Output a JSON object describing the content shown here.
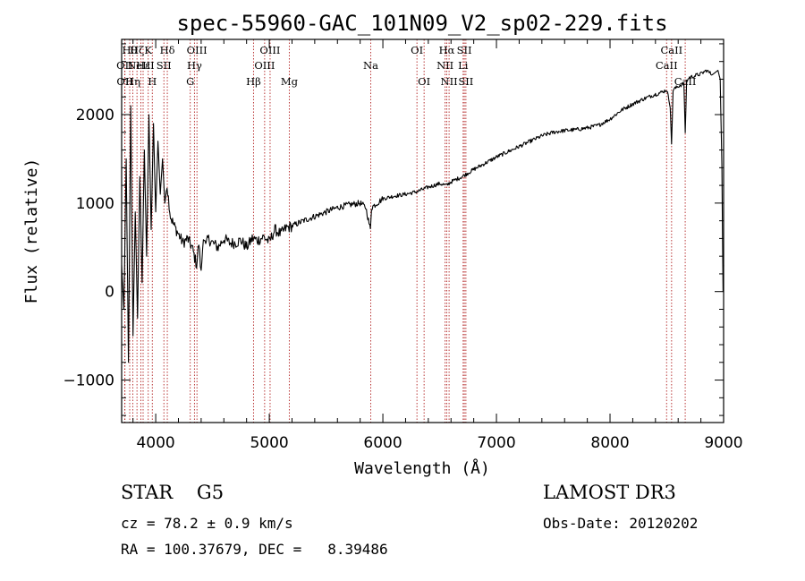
{
  "chart_data": {
    "type": "line",
    "title": "spec-55960-GAC_101N09_V2_sp02-229.fits",
    "xlabel": "Wavelength (Å)",
    "ylabel": "Flux (relative)",
    "xlim": [
      3700,
      9000
    ],
    "ylim": [
      -1480,
      2850
    ],
    "x_ticks": [
      4000,
      5000,
      6000,
      7000,
      8000,
      9000
    ],
    "y_ticks": [
      -1000,
      0,
      1000,
      2000
    ],
    "series": [
      {
        "name": "spectrum",
        "x": [
          3700,
          3720,
          3740,
          3760,
          3780,
          3800,
          3820,
          3840,
          3860,
          3880,
          3900,
          3920,
          3940,
          3960,
          3980,
          4000,
          4020,
          4040,
          4060,
          4080,
          4100,
          4130,
          4160,
          4200,
          4240,
          4280,
          4320,
          4360,
          4380,
          4400,
          4420,
          4440,
          4460,
          4500,
          4550,
          4600,
          4650,
          4700,
          4750,
          4800,
          4850,
          4900,
          4950,
          5000,
          5050,
          5100,
          5150,
          5200,
          5300,
          5400,
          5500,
          5600,
          5700,
          5800,
          5850,
          5890,
          5900,
          5950,
          6000,
          6100,
          6200,
          6300,
          6400,
          6500,
          6560,
          6600,
          6700,
          6800,
          6900,
          7000,
          7100,
          7200,
          7300,
          7400,
          7500,
          7600,
          7700,
          7800,
          7900,
          8000,
          8100,
          8200,
          8300,
          8400,
          8450,
          8500,
          8530,
          8542,
          8555,
          8600,
          8650,
          8662,
          8675,
          8700,
          8750,
          8800,
          8850,
          8900,
          8950,
          8970,
          8985,
          8995,
          9000
        ],
        "y": [
          300,
          -200,
          1500,
          -800,
          2100,
          -500,
          900,
          -300,
          1300,
          100,
          1600,
          400,
          2000,
          700,
          1900,
          900,
          1700,
          1100,
          1500,
          1000,
          1200,
          850,
          750,
          650,
          550,
          600,
          500,
          300,
          550,
          200,
          650,
          500,
          600,
          550,
          500,
          600,
          550,
          550,
          580,
          500,
          600,
          580,
          620,
          560,
          700,
          650,
          720,
          740,
          800,
          850,
          900,
          950,
          980,
          1000,
          950,
          700,
          950,
          1000,
          1050,
          1080,
          1100,
          1130,
          1180,
          1220,
          1200,
          1240,
          1300,
          1380,
          1450,
          1520,
          1580,
          1640,
          1700,
          1760,
          1800,
          1820,
          1830,
          1850,
          1880,
          1950,
          2050,
          2120,
          2180,
          2230,
          2250,
          2280,
          2100,
          1650,
          2280,
          2320,
          2350,
          1800,
          2380,
          2420,
          2440,
          2460,
          2500,
          2450,
          2500,
          2400,
          1400,
          0,
          300
        ]
      }
    ],
    "line_markers": [
      {
        "w": 3727,
        "label": "OII",
        "row": 2
      },
      {
        "w": 3729,
        "label": "OII",
        "row": 3
      },
      {
        "w": 3771,
        "label": "Hθ",
        "row": 1
      },
      {
        "w": 3798,
        "label": "Hη",
        "row": 3
      },
      {
        "w": 3835,
        "label": "Hζ",
        "row": 1
      },
      {
        "w": 3869,
        "label": "NeIII",
        "row": 2
      },
      {
        "w": 3889,
        "label": "Hε",
        "row": 2
      },
      {
        "w": 3934,
        "label": "K",
        "row": 1
      },
      {
        "w": 3970,
        "label": "H",
        "row": 3
      },
      {
        "w": 4072,
        "label": "SII",
        "row": 2
      },
      {
        "w": 4102,
        "label": "Hδ",
        "row": 1
      },
      {
        "w": 4304,
        "label": "G",
        "row": 3
      },
      {
        "w": 4341,
        "label": "Hγ",
        "row": 2
      },
      {
        "w": 4363,
        "label": "OIII",
        "row": 1
      },
      {
        "w": 4861,
        "label": "Hβ",
        "row": 3
      },
      {
        "w": 4959,
        "label": "OIII",
        "row": 2
      },
      {
        "w": 5007,
        "label": "OIII",
        "row": 1
      },
      {
        "w": 5176,
        "label": "Mg",
        "row": 3
      },
      {
        "w": 5893,
        "label": "Na",
        "row": 2
      },
      {
        "w": 6300,
        "label": "OI",
        "row": 1
      },
      {
        "w": 6363,
        "label": "OI",
        "row": 3
      },
      {
        "w": 6548,
        "label": "NII",
        "row": 2
      },
      {
        "w": 6563,
        "label": "Hα",
        "row": 1
      },
      {
        "w": 6583,
        "label": "NII",
        "row": 3
      },
      {
        "w": 6707,
        "label": "Li",
        "row": 2
      },
      {
        "w": 6717,
        "label": "SII",
        "row": 1
      },
      {
        "w": 6731,
        "label": "SII",
        "row": 3
      },
      {
        "w": 8498,
        "label": "CaII",
        "row": 2
      },
      {
        "w": 8542,
        "label": "CaII",
        "row": 1
      },
      {
        "w": 8662,
        "label": "CaII",
        "row": 3
      }
    ]
  },
  "info": {
    "class": "STAR    G5",
    "cz": "cz = 78.2 ± 0.9 km/s",
    "coords": "RA = 100.37679, DEC =   8.39486",
    "survey": "LAMOST DR3",
    "obs_date": "Obs-Date: 20120202"
  },
  "colors": {
    "spectrum": "#000000",
    "marker": "#b22222",
    "frame": "#000000"
  }
}
